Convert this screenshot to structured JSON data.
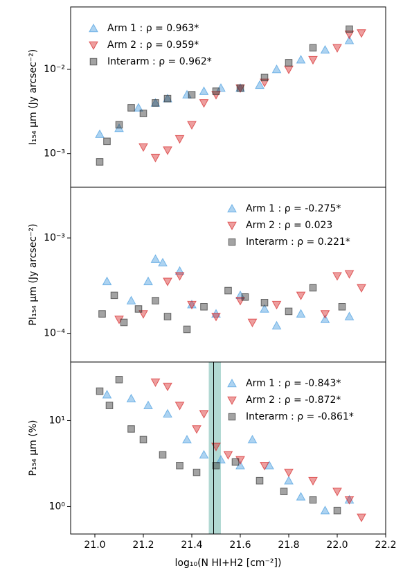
{
  "chart_data": [
    {
      "type": "scatter",
      "ylabel": "I₁₅₄ μm (Jy arcsec⁻²)",
      "log_y": true,
      "legend": "upper left",
      "xlim": [
        20.9,
        22.2
      ],
      "ylim": [
        0.0004,
        0.055
      ],
      "yticks": [
        {
          "value": 0.001,
          "label": "10⁻³"
        },
        {
          "value": 0.01,
          "label": "10⁻²"
        }
      ],
      "series": [
        {
          "name": "Arm 1 : ρ = 0.963*",
          "color": "#4a9ee0",
          "marker": "triangle-up",
          "x": [
            21.02,
            21.1,
            21.18,
            21.25,
            21.3,
            21.38,
            21.45,
            21.52,
            21.6,
            21.68,
            21.75,
            21.85,
            21.95,
            22.05
          ],
          "y": [
            0.0017,
            0.002,
            0.0035,
            0.004,
            0.0045,
            0.005,
            0.0055,
            0.006,
            0.006,
            0.0065,
            0.01,
            0.013,
            0.017,
            0.022
          ]
        },
        {
          "name": "Arm 2 : ρ = 0.959*",
          "color": "#d62728",
          "marker": "triangle-down",
          "x": [
            21.2,
            21.25,
            21.3,
            21.35,
            21.4,
            21.45,
            21.5,
            21.6,
            21.7,
            21.8,
            21.9,
            22.0,
            22.05,
            22.1
          ],
          "y": [
            0.0012,
            0.0009,
            0.0011,
            0.0015,
            0.0022,
            0.004,
            0.005,
            0.006,
            0.007,
            0.01,
            0.013,
            0.018,
            0.026,
            0.027
          ]
        },
        {
          "name": "Interarm : ρ = 0.962*",
          "color": "#333333",
          "marker": "square",
          "x": [
            21.02,
            21.05,
            21.1,
            21.15,
            21.2,
            21.25,
            21.3,
            21.4,
            21.5,
            21.6,
            21.7,
            21.8,
            21.9,
            22.05
          ],
          "y": [
            0.0008,
            0.0014,
            0.0022,
            0.0035,
            0.003,
            0.004,
            0.0045,
            0.005,
            0.0055,
            0.006,
            0.008,
            0.012,
            0.018,
            0.03
          ]
        }
      ]
    },
    {
      "type": "scatter",
      "ylabel": "PI₁₅₄ μm (Jy arcsec⁻²)",
      "log_y": true,
      "legend": "upper right",
      "xlim": [
        20.9,
        22.2
      ],
      "ylim": [
        5e-05,
        0.0034
      ],
      "yticks": [
        {
          "value": 0.0001,
          "label": "10⁻⁴"
        },
        {
          "value": 0.001,
          "label": "10⁻³"
        }
      ],
      "series": [
        {
          "name": "Arm 1 : ρ = -0.275*",
          "color": "#4a9ee0",
          "marker": "triangle-up",
          "x": [
            21.05,
            21.15,
            21.22,
            21.25,
            21.28,
            21.35,
            21.4,
            21.5,
            21.6,
            21.7,
            21.75,
            21.85,
            21.95,
            22.05
          ],
          "y": [
            0.00035,
            0.00022,
            0.00035,
            0.0006,
            0.00055,
            0.00045,
            0.0002,
            0.00016,
            0.00025,
            0.00018,
            0.00012,
            0.00016,
            0.00014,
            0.00015
          ]
        },
        {
          "name": "Arm 2 : ρ = 0.023",
          "color": "#d62728",
          "marker": "triangle-down",
          "x": [
            21.1,
            21.2,
            21.3,
            21.35,
            21.4,
            21.5,
            21.6,
            21.65,
            21.75,
            21.85,
            21.95,
            22.0,
            22.05,
            22.1
          ],
          "y": [
            0.00014,
            0.00016,
            0.00035,
            0.0004,
            0.0002,
            0.00015,
            0.00022,
            0.00013,
            0.0002,
            0.00025,
            0.00016,
            0.0004,
            0.00042,
            0.0003
          ]
        },
        {
          "name": "Interarm : ρ = 0.221*",
          "color": "#333333",
          "marker": "square",
          "x": [
            21.03,
            21.08,
            21.12,
            21.18,
            21.25,
            21.3,
            21.38,
            21.45,
            21.55,
            21.62,
            21.7,
            21.8,
            21.9,
            22.02
          ],
          "y": [
            0.00016,
            0.00025,
            0.00013,
            0.00018,
            0.00022,
            0.00015,
            0.00011,
            0.00019,
            0.00028,
            0.00024,
            0.00021,
            0.00017,
            0.0003,
            0.00019
          ]
        }
      ]
    },
    {
      "type": "scatter",
      "ylabel": "P₁₅₄ μm (%)",
      "xlabel": "log₁₀(N HI+H2 [cm⁻²])",
      "log_y": true,
      "legend": "upper right",
      "xlim": [
        20.9,
        22.2
      ],
      "ylim": [
        0.48,
        48
      ],
      "xticks": [
        {
          "value": 21,
          "label": "21.0"
        },
        21.2,
        21.4,
        21.6,
        21.8,
        {
          "value": 22,
          "label": "22.0"
        },
        22.2
      ],
      "yticks": [
        {
          "value": 1,
          "label": "10⁰"
        },
        {
          "value": 10,
          "label": "10¹"
        }
      ],
      "vline": 21.49,
      "vband": [
        21.47,
        21.52
      ],
      "vband_color": "#7fbfb5",
      "series": [
        {
          "name": "Arm 1 : ρ = -0.843*",
          "color": "#4a9ee0",
          "marker": "triangle-up",
          "x": [
            21.05,
            21.15,
            21.22,
            21.3,
            21.38,
            21.45,
            21.52,
            21.6,
            21.65,
            21.72,
            21.8,
            21.85,
            21.95,
            22.05
          ],
          "y": [
            20,
            18,
            15,
            12,
            6,
            4,
            3.5,
            3,
            6,
            3,
            2,
            1.3,
            0.9,
            1.2
          ]
        },
        {
          "name": "Arm 2 : ρ = -0.872*",
          "color": "#d62728",
          "marker": "triangle-down",
          "x": [
            21.25,
            21.3,
            21.35,
            21.42,
            21.5,
            21.55,
            21.6,
            21.7,
            21.8,
            21.9,
            22.0,
            22.05,
            22.1,
            21.45
          ],
          "y": [
            28,
            25,
            15,
            8,
            5,
            4,
            3.5,
            3,
            2.5,
            2,
            1.5,
            1.2,
            0.75,
            12
          ]
        },
        {
          "name": "Interarm : ρ = -0.861*",
          "color": "#333333",
          "marker": "square",
          "x": [
            21.02,
            21.06,
            21.1,
            21.15,
            21.2,
            21.28,
            21.35,
            21.42,
            21.5,
            21.58,
            21.68,
            21.78,
            21.9,
            22.0
          ],
          "y": [
            22,
            15,
            30,
            8,
            6,
            4,
            3,
            2.5,
            3,
            3.3,
            2,
            1.5,
            1.2,
            0.9
          ]
        }
      ]
    }
  ]
}
